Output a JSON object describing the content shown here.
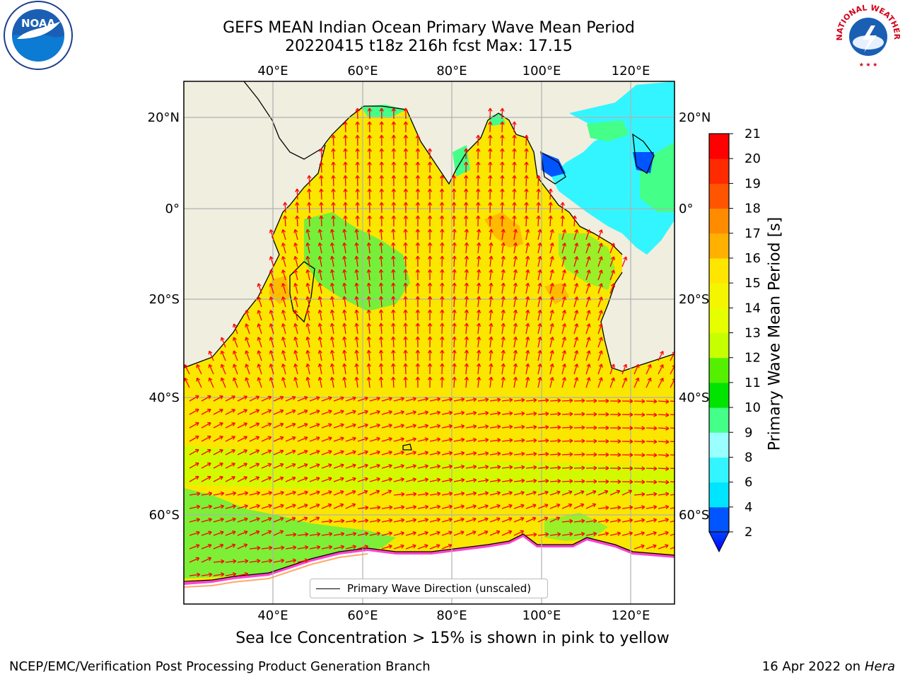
{
  "title": {
    "line1": "GEFS MEAN Indian Ocean Primary Wave Mean Period",
    "line2": "20220415 t18z 216h fcst   Max: 17.15"
  },
  "logos": {
    "left": {
      "name": "noaa-logo",
      "text": "NOAA",
      "ring_text": "NATIONAL OCEANIC AND ATMOSPHERIC ADMINISTRATION · U.S. DEPARTMENT OF COMMERCE"
    },
    "right": {
      "name": "nws-logo",
      "ring_text": "NATIONAL WEATHER SERVICE"
    }
  },
  "map": {
    "lon_ticks_top": [
      "40°E",
      "60°E",
      "80°E",
      "100°E",
      "120°E"
    ],
    "lon_ticks_bottom": [
      "40°E",
      "60°E",
      "80°E",
      "100°E",
      "120°E"
    ],
    "lat_ticks_left": [
      "20°N",
      "0°",
      "20°S",
      "40°S",
      "60°S"
    ],
    "lat_ticks_right": [
      "20°N",
      "0°",
      "20°S",
      "40°S",
      "60°S"
    ],
    "lon_values": [
      40,
      60,
      80,
      100,
      120
    ],
    "lat_values": [
      20,
      0,
      -20,
      -40,
      -60
    ],
    "extent": {
      "lon_min": 20,
      "lon_max": 130,
      "lat_min": -70,
      "lat_max": 27
    },
    "land_color": "#efeedf",
    "ocean_base_color": "#ffe600",
    "arrow_color": "#ff0000",
    "legend_label": "Primary Wave Direction (unscaled)"
  },
  "colorbar": {
    "label": "Primary Wave Mean Period [s]",
    "tick_labels": [
      "2",
      "4",
      "6",
      "8",
      "9",
      "10",
      "11",
      "12",
      "13",
      "14",
      "15",
      "16",
      "17",
      "18",
      "19",
      "20",
      "21"
    ],
    "levels": [
      2,
      4,
      6,
      8,
      9,
      10,
      11,
      12,
      13,
      14,
      15,
      16,
      17,
      18,
      19,
      20,
      21
    ],
    "colors": [
      "#0055ff",
      "#00e5ff",
      "#33f5ff",
      "#99ffff",
      "#44ff88",
      "#00e400",
      "#55f000",
      "#c6ff00",
      "#e5ff00",
      "#f5f500",
      "#ffe600",
      "#ffb000",
      "#ff8c00",
      "#ff5500",
      "#ff2a00",
      "#ff0000"
    ],
    "extend_color": "#0000ff"
  },
  "caption": "Sea Ice Concentration > 15% is shown in pink to yellow",
  "footer": {
    "left": "NCEP/EMC/Verification Post Processing Product Generation Branch",
    "right_date": "16 Apr 2022 on ",
    "right_host": "Hera"
  }
}
